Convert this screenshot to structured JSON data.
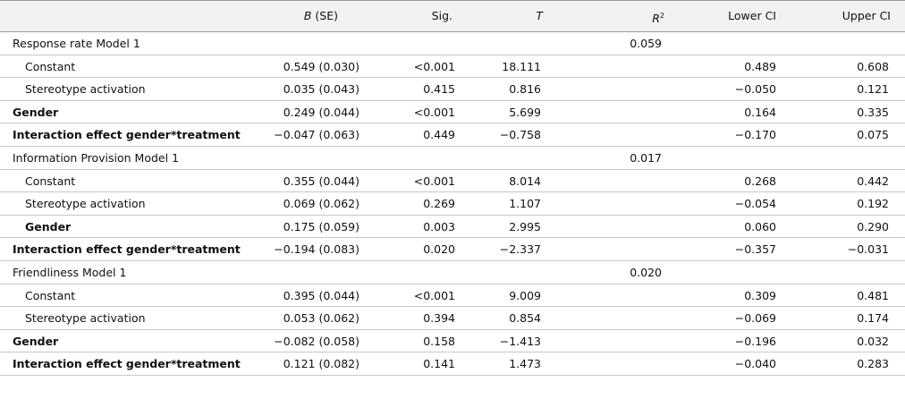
{
  "table": {
    "columns": [
      {
        "em": "B",
        "text": "(SE)"
      },
      {
        "text": "Sig."
      },
      {
        "em": "T"
      },
      {
        "em": "R",
        "sup": "2"
      },
      {
        "text": "Lower CI"
      },
      {
        "text": "Upper CI"
      }
    ],
    "rows": [
      {
        "label": "Response rate Model 1",
        "cells": [
          null,
          null,
          null,
          "0.059",
          null,
          null
        ]
      },
      {
        "label": "Constant",
        "indent": true,
        "cells": [
          "0.549 (0.030)",
          "<0.001",
          "18.111",
          null,
          "0.489",
          "0.608"
        ]
      },
      {
        "label": "Stereotype activation",
        "indent": true,
        "cells": [
          "0.035 (0.043)",
          "0.415",
          "0.816",
          null,
          "−0.050",
          "0.121"
        ]
      },
      {
        "label": "Gender",
        "bold": true,
        "cells": [
          "0.249 (0.044)",
          "<0.001",
          "5.699",
          null,
          "0.164",
          "0.335"
        ]
      },
      {
        "label": "Interaction effect gender*treatment",
        "bold": true,
        "cells": [
          "−0.047 (0.063)",
          "0.449",
          "−0.758",
          null,
          "−0.170",
          "0.075"
        ]
      },
      {
        "label": "Information Provision Model 1",
        "cells": [
          null,
          null,
          null,
          "0.017",
          null,
          null
        ]
      },
      {
        "label": "Constant",
        "indent": true,
        "cells": [
          "0.355 (0.044)",
          "<0.001",
          "8.014",
          null,
          "0.268",
          "0.442"
        ]
      },
      {
        "label": "Stereotype activation",
        "indent": true,
        "cells": [
          "0.069 (0.062)",
          "0.269",
          "1.107",
          null,
          "−0.054",
          "0.192"
        ]
      },
      {
        "label": "Gender",
        "indent": true,
        "bold": true,
        "cells": [
          "0.175 (0.059)",
          "0.003",
          "2.995",
          null,
          "0.060",
          "0.290"
        ]
      },
      {
        "label": "Interaction effect gender*treatment",
        "bold": true,
        "cells": [
          "−0.194 (0.083)",
          "0.020",
          "−2.337",
          null,
          "−0.357",
          "−0.031"
        ]
      },
      {
        "label": "Friendliness Model 1",
        "cells": [
          null,
          null,
          null,
          "0.020",
          null,
          null
        ]
      },
      {
        "label": "Constant",
        "indent": true,
        "cells": [
          "0.395 (0.044)",
          "<0.001",
          "9.009",
          null,
          "0.309",
          "0.481"
        ]
      },
      {
        "label": "Stereotype activation",
        "indent": true,
        "cells": [
          "0.053 (0.062)",
          "0.394",
          "0.854",
          null,
          "−0.069",
          "0.174"
        ]
      },
      {
        "label": "Gender",
        "bold": true,
        "cells": [
          "−0.082 (0.058)",
          "0.158",
          "−1.413",
          null,
          "−0.196",
          "0.032"
        ]
      },
      {
        "label": "Interaction effect gender*treatment",
        "bold": true,
        "cells": [
          "0.121 (0.082)",
          "0.141",
          "1.473",
          null,
          "−0.040",
          "0.283"
        ]
      }
    ]
  }
}
